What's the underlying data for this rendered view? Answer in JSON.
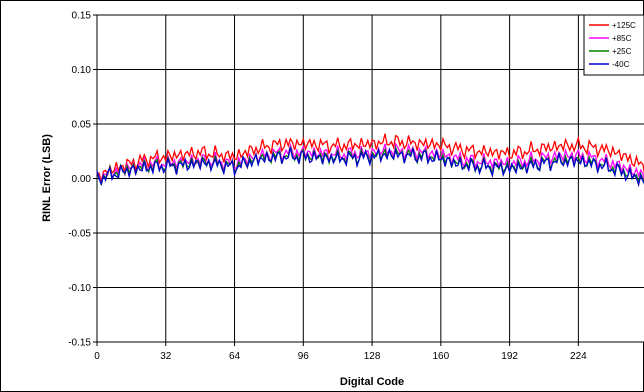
{
  "chart_data": {
    "type": "line",
    "title": "",
    "xlabel": "Digital Code",
    "ylabel": "RINL Error (LSB)",
    "xlim": [
      0,
      255
    ],
    "ylim": [
      -0.15,
      0.15
    ],
    "x_ticks": [
      0,
      32,
      64,
      96,
      128,
      160,
      192,
      224
    ],
    "x_tick_labels": [
      "0",
      "32",
      "64",
      "96",
      "128",
      "160",
      "192",
      "224"
    ],
    "y_ticks": [
      0.15,
      0.1,
      0.05,
      0.0,
      -0.05,
      -0.1,
      -0.15
    ],
    "y_tick_labels": [
      "0.15",
      "0.10",
      "0.05",
      "0.00",
      "-0.05",
      "-0.10",
      "-0.15"
    ],
    "grid": true,
    "legend_position": "top-right",
    "x_sample_codes": [
      0,
      8,
      16,
      24,
      32,
      40,
      48,
      56,
      64,
      72,
      80,
      88,
      96,
      104,
      112,
      120,
      128,
      136,
      144,
      152,
      160,
      168,
      176,
      184,
      192,
      200,
      208,
      216,
      224,
      232,
      240,
      248,
      255
    ],
    "series": [
      {
        "name": "+125C",
        "color": "#ff0000",
        "values": [
          0.002,
          0.009,
          0.014,
          0.018,
          0.02,
          0.022,
          0.024,
          0.022,
          0.02,
          0.026,
          0.03,
          0.032,
          0.032,
          0.031,
          0.03,
          0.031,
          0.032,
          0.034,
          0.033,
          0.032,
          0.031,
          0.027,
          0.025,
          0.024,
          0.023,
          0.025,
          0.028,
          0.03,
          0.03,
          0.028,
          0.025,
          0.018,
          0.01
        ]
      },
      {
        "name": "+85C",
        "color": "#ff00ff",
        "values": [
          0.001,
          0.006,
          0.01,
          0.013,
          0.014,
          0.015,
          0.017,
          0.016,
          0.013,
          0.019,
          0.022,
          0.024,
          0.024,
          0.023,
          0.022,
          0.023,
          0.024,
          0.026,
          0.025,
          0.024,
          0.022,
          0.018,
          0.016,
          0.015,
          0.014,
          0.016,
          0.019,
          0.021,
          0.021,
          0.018,
          0.014,
          0.008,
          0.002
        ]
      },
      {
        "name": "+25C",
        "color": "#008000",
        "values": [
          0.0,
          0.005,
          0.009,
          0.011,
          0.012,
          0.013,
          0.015,
          0.014,
          0.011,
          0.017,
          0.02,
          0.021,
          0.021,
          0.02,
          0.019,
          0.02,
          0.021,
          0.023,
          0.022,
          0.021,
          0.019,
          0.014,
          0.012,
          0.011,
          0.01,
          0.012,
          0.015,
          0.017,
          0.017,
          0.014,
          0.01,
          0.004,
          -0.002
        ]
      },
      {
        "name": "-40C",
        "color": "#0000cc",
        "values": [
          0.0,
          0.004,
          0.008,
          0.01,
          0.011,
          0.012,
          0.014,
          0.013,
          0.01,
          0.016,
          0.019,
          0.02,
          0.02,
          0.019,
          0.018,
          0.019,
          0.02,
          0.022,
          0.021,
          0.02,
          0.018,
          0.013,
          0.011,
          0.01,
          0.009,
          0.011,
          0.014,
          0.016,
          0.016,
          0.013,
          0.009,
          0.003,
          -0.003
        ]
      }
    ]
  }
}
